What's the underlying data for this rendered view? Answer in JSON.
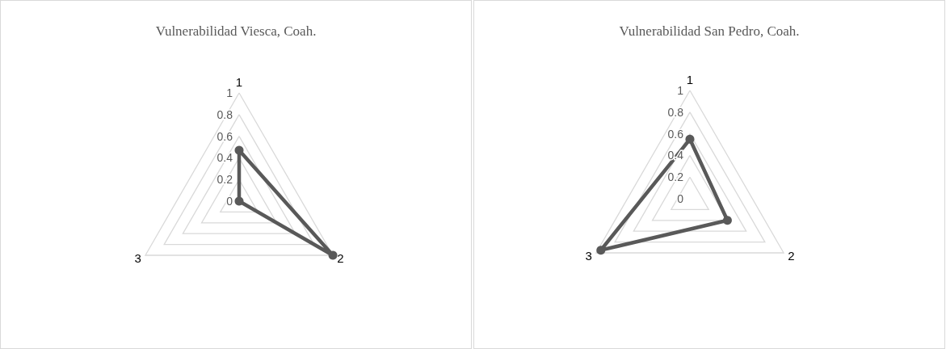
{
  "chart_data": [
    {
      "type": "radar",
      "title": "Vulnerabilidad Viesca, Coah.",
      "categories": [
        "1",
        "2",
        "3"
      ],
      "series": [
        {
          "color": "#595959",
          "values": [
            0.47,
            1,
            0
          ]
        }
      ],
      "ylim": [
        0,
        1
      ],
      "yticks": [
        0,
        0.2,
        0.4,
        0.6,
        0.8,
        1
      ],
      "grid": true,
      "marker": "circle",
      "legend": false
    },
    {
      "type": "radar",
      "title": "Vulnerabilidad San Pedro, Coah.",
      "categories": [
        "1",
        "2",
        "3"
      ],
      "series": [
        {
          "color": "#595959",
          "values": [
            0.55,
            0.4,
            0.95
          ]
        }
      ],
      "ylim": [
        0,
        1
      ],
      "yticks": [
        0,
        0.2,
        0.4,
        0.6,
        0.8,
        1
      ],
      "grid": true,
      "marker": "circle",
      "legend": false
    }
  ]
}
